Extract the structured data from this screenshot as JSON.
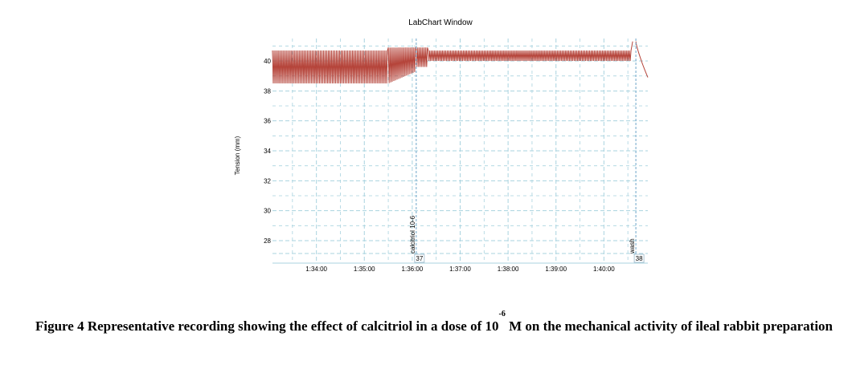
{
  "chart_data": {
    "type": "line",
    "title": "LabChart Window",
    "xlabel": "",
    "ylabel": "Tension (mm)",
    "x_range": [
      "1:33:05",
      "1:40:55"
    ],
    "ylim": [
      26.5,
      41.5
    ],
    "y_ticks": [
      28,
      30,
      32,
      34,
      36,
      38,
      40
    ],
    "x_ticks": [
      "1:34:00",
      "1:35:00",
      "1:36:00",
      "1:37:00",
      "1:38:00",
      "1:39:00",
      "1:40:00"
    ],
    "grid": true,
    "legend": "none",
    "series_color": "#b5443a",
    "grid_color": "#a9d3df",
    "series": [
      {
        "segments": [
          {
            "start": "1:33:05",
            "end": "1:35:30",
            "low": 38.5,
            "high": 40.7
          },
          {
            "start": "1:35:30",
            "end": "1:36:05",
            "low": 38.5,
            "high": 40.9,
            "note": "baseline rising toward 39.3"
          },
          {
            "start": "1:36:05",
            "end": "1:36:20",
            "low": 39.6,
            "high": 40.9
          },
          {
            "start": "1:36:20",
            "end": "1:40:35",
            "low": 40.0,
            "high": 40.7
          },
          {
            "start": "1:40:40",
            "end": "1:40:55",
            "from": 41.3,
            "to": 38.9,
            "note": "decline after wash"
          }
        ]
      }
    ],
    "annotations": [
      {
        "label": "calcitriol 10-6",
        "number": "37",
        "x": "1:36:05"
      },
      {
        "label": "wash",
        "number": "38",
        "x": "1:40:40"
      }
    ]
  },
  "caption": {
    "prefix": "Figure 4 Representative recording showing the effect of calcitriol in a dose of 10",
    "superscript": "-6",
    "suffix": " M on the mechanical activity of ileal rabbit preparation"
  }
}
